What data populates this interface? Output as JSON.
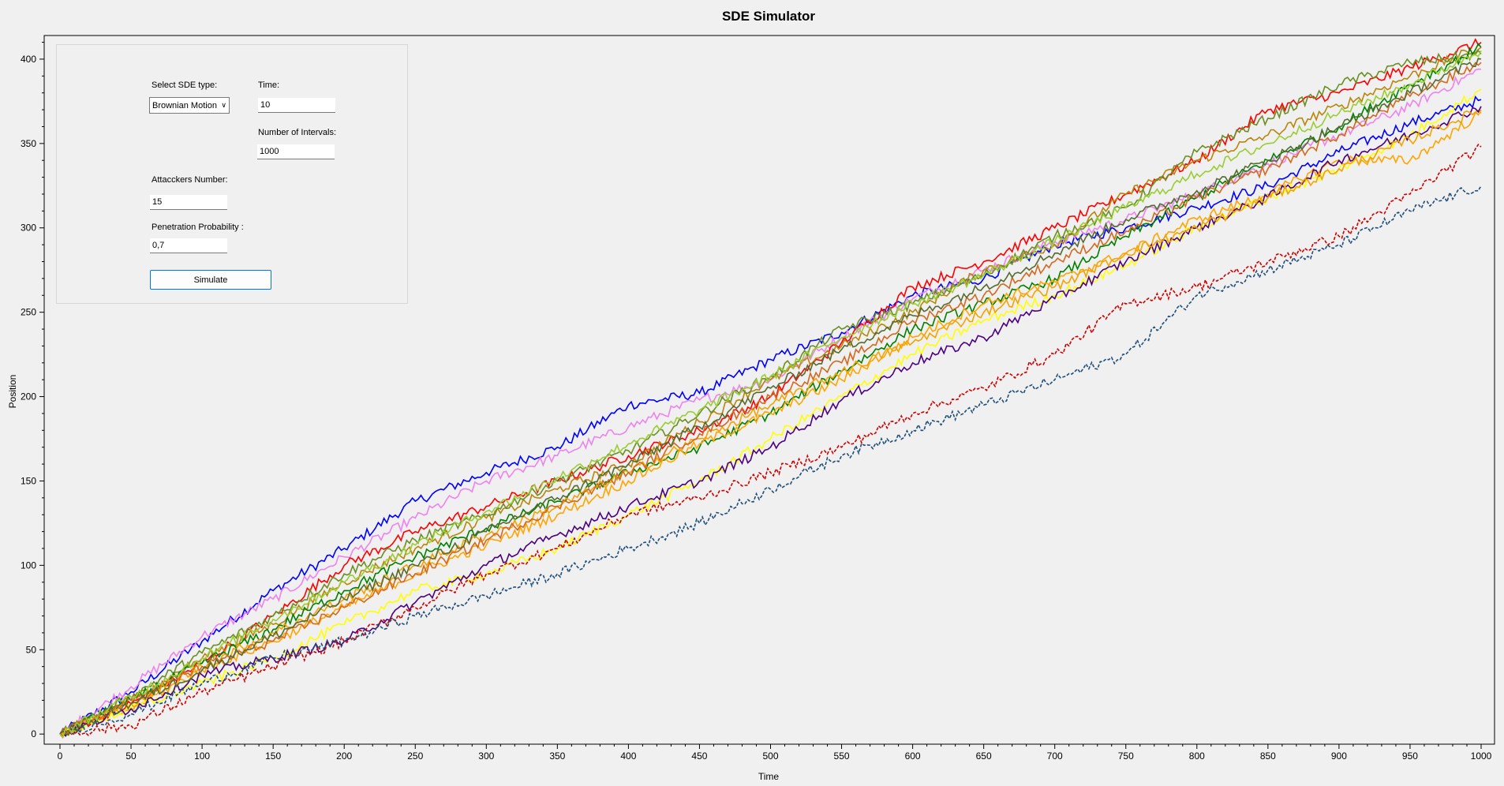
{
  "controls": {
    "sde_type_label": "Select SDE type:",
    "sde_type_value": "Brownian Motion",
    "time_label": "Time:",
    "time_value": "10",
    "intervals_label": "Number of Intervals:",
    "intervals_value": "1000",
    "attackers_label": "Attacckers Number:",
    "attackers_value": "15",
    "penetration_label": "Penetration Probability :",
    "penetration_value": "0,7",
    "simulate_label": "Simulate"
  },
  "chart_data": {
    "type": "line",
    "title": "SDE Simulator",
    "xlabel": "Time",
    "ylabel": "Position",
    "xlim": [
      0,
      1000
    ],
    "ylim": [
      -6,
      414
    ],
    "xticks": [
      0,
      50,
      100,
      150,
      200,
      250,
      300,
      350,
      400,
      450,
      500,
      550,
      600,
      650,
      700,
      750,
      800,
      850,
      900,
      950,
      1000
    ],
    "yticks": [
      0,
      50,
      100,
      150,
      200,
      250,
      300,
      350,
      400
    ],
    "grid": false,
    "legend": "none",
    "series": [
      {
        "color": "#0000ff",
        "dashed": false,
        "x": [
          0,
          50,
          100,
          150,
          200,
          250,
          300,
          350,
          400,
          450,
          500,
          550,
          600,
          650,
          700,
          750,
          800,
          850,
          900,
          950,
          1000
        ],
        "y": [
          0,
          25,
          55,
          85,
          110,
          138,
          155,
          170,
          195,
          202,
          222,
          238,
          260,
          270,
          290,
          300,
          312,
          325,
          345,
          362,
          376
        ]
      },
      {
        "color": "#ee82ee",
        "dashed": false,
        "x": [
          0,
          50,
          100,
          150,
          200,
          250,
          300,
          350,
          400,
          450,
          500,
          550,
          600,
          650,
          700,
          750,
          800,
          850,
          900,
          950,
          1000
        ],
        "y": [
          0,
          28,
          58,
          80,
          105,
          128,
          150,
          165,
          182,
          198,
          210,
          235,
          258,
          275,
          292,
          305,
          320,
          338,
          355,
          372,
          394
        ]
      },
      {
        "color": "#ff0000",
        "dashed": false,
        "x": [
          0,
          50,
          100,
          150,
          200,
          250,
          300,
          350,
          400,
          450,
          500,
          550,
          600,
          650,
          700,
          750,
          800,
          850,
          900,
          950,
          1000
        ],
        "y": [
          0,
          18,
          42,
          70,
          100,
          120,
          135,
          150,
          165,
          180,
          200,
          232,
          265,
          280,
          300,
          320,
          340,
          370,
          380,
          395,
          410
        ]
      },
      {
        "color": "#b8860b",
        "dashed": false,
        "x": [
          0,
          50,
          100,
          150,
          200,
          250,
          300,
          350,
          400,
          450,
          500,
          550,
          600,
          650,
          700,
          750,
          800,
          850,
          900,
          950,
          1000
        ],
        "y": [
          0,
          20,
          45,
          65,
          90,
          110,
          128,
          145,
          160,
          185,
          210,
          230,
          250,
          275,
          290,
          320,
          340,
          355,
          372,
          390,
          407
        ]
      },
      {
        "color": "#6b8e23",
        "dashed": false,
        "x": [
          0,
          50,
          100,
          150,
          200,
          250,
          300,
          350,
          400,
          450,
          500,
          550,
          600,
          650,
          700,
          750,
          800,
          850,
          900,
          950,
          1000
        ],
        "y": [
          0,
          22,
          48,
          70,
          95,
          115,
          130,
          150,
          168,
          190,
          212,
          240,
          255,
          272,
          295,
          312,
          345,
          365,
          385,
          398,
          403
        ]
      },
      {
        "color": "#008000",
        "dashed": false,
        "x": [
          0,
          50,
          100,
          150,
          200,
          250,
          300,
          350,
          400,
          450,
          500,
          550,
          600,
          650,
          700,
          750,
          800,
          850,
          900,
          950,
          1000
        ],
        "y": [
          0,
          20,
          42,
          62,
          85,
          105,
          122,
          138,
          155,
          170,
          190,
          215,
          240,
          255,
          270,
          295,
          318,
          340,
          360,
          385,
          407
        ]
      },
      {
        "color": "#ffa500",
        "dashed": false,
        "x": [
          0,
          50,
          100,
          150,
          200,
          250,
          300,
          350,
          400,
          450,
          500,
          550,
          600,
          650,
          700,
          750,
          800,
          850,
          900,
          950,
          1000
        ],
        "y": [
          0,
          15,
          38,
          55,
          75,
          95,
          112,
          130,
          150,
          172,
          190,
          210,
          235,
          255,
          268,
          285,
          305,
          320,
          340,
          340,
          368
        ]
      },
      {
        "color": "#ffff00",
        "dashed": false,
        "x": [
          0,
          50,
          100,
          150,
          200,
          250,
          300,
          350,
          400,
          450,
          500,
          550,
          600,
          650,
          700,
          750,
          800,
          850,
          900,
          950,
          1000
        ],
        "y": [
          0,
          15,
          30,
          45,
          65,
          85,
          95,
          110,
          130,
          150,
          175,
          200,
          225,
          245,
          260,
          278,
          300,
          318,
          335,
          355,
          382
        ]
      },
      {
        "color": "#4b0082",
        "dashed": false,
        "x": [
          0,
          50,
          100,
          150,
          200,
          250,
          300,
          350,
          400,
          450,
          500,
          550,
          600,
          650,
          700,
          750,
          800,
          850,
          900,
          950,
          1000
        ],
        "y": [
          0,
          15,
          35,
          45,
          55,
          78,
          100,
          118,
          135,
          150,
          170,
          198,
          220,
          235,
          258,
          280,
          300,
          318,
          340,
          355,
          372
        ]
      },
      {
        "color": "#f4a300",
        "dashed": false,
        "x": [
          0,
          50,
          100,
          150,
          200,
          250,
          300,
          350,
          400,
          450,
          500,
          550,
          600,
          650,
          700,
          750,
          800,
          850,
          900,
          950,
          1000
        ],
        "y": [
          0,
          18,
          40,
          60,
          80,
          100,
          118,
          135,
          155,
          175,
          195,
          215,
          232,
          250,
          265,
          285,
          300,
          318,
          335,
          352,
          370
        ]
      },
      {
        "color": "#cc0000",
        "dashed": true,
        "x": [
          0,
          50,
          100,
          150,
          200,
          250,
          300,
          350,
          400,
          450,
          500,
          550,
          600,
          650,
          700,
          750,
          800,
          850,
          900,
          950,
          1000
        ],
        "y": [
          0,
          5,
          25,
          40,
          55,
          75,
          95,
          110,
          130,
          140,
          155,
          170,
          190,
          205,
          225,
          255,
          265,
          280,
          295,
          320,
          348
        ]
      },
      {
        "color": "#1f4e79",
        "dashed": true,
        "x": [
          0,
          50,
          100,
          150,
          200,
          250,
          300,
          350,
          400,
          450,
          500,
          550,
          600,
          650,
          700,
          750,
          800,
          850,
          900,
          950,
          1000
        ],
        "y": [
          0,
          12,
          30,
          45,
          55,
          70,
          82,
          95,
          110,
          125,
          145,
          165,
          180,
          195,
          210,
          225,
          260,
          275,
          290,
          310,
          325
        ]
      },
      {
        "color": "#d2691e",
        "dashed": false,
        "x": [
          0,
          50,
          100,
          150,
          200,
          250,
          300,
          350,
          400,
          450,
          500,
          550,
          600,
          650,
          700,
          750,
          800,
          850,
          900,
          950,
          1000
        ],
        "y": [
          0,
          20,
          40,
          55,
          75,
          95,
          115,
          135,
          155,
          178,
          200,
          220,
          245,
          260,
          280,
          298,
          318,
          335,
          355,
          378,
          398
        ]
      },
      {
        "color": "#556b2f",
        "dashed": false,
        "x": [
          0,
          50,
          100,
          150,
          200,
          250,
          300,
          350,
          400,
          450,
          500,
          550,
          600,
          650,
          700,
          750,
          800,
          850,
          900,
          950,
          1000
        ],
        "y": [
          0,
          18,
          38,
          58,
          80,
          100,
          120,
          140,
          160,
          182,
          205,
          228,
          248,
          265,
          285,
          305,
          322,
          340,
          360,
          380,
          400
        ]
      },
      {
        "color": "#9acd32",
        "dashed": false,
        "x": [
          0,
          50,
          100,
          150,
          200,
          250,
          300,
          350,
          400,
          450,
          500,
          550,
          600,
          650,
          700,
          750,
          800,
          850,
          900,
          950,
          1000
        ],
        "y": [
          0,
          22,
          45,
          68,
          90,
          112,
          132,
          152,
          172,
          192,
          212,
          235,
          255,
          272,
          292,
          312,
          332,
          350,
          368,
          385,
          405
        ]
      }
    ]
  }
}
